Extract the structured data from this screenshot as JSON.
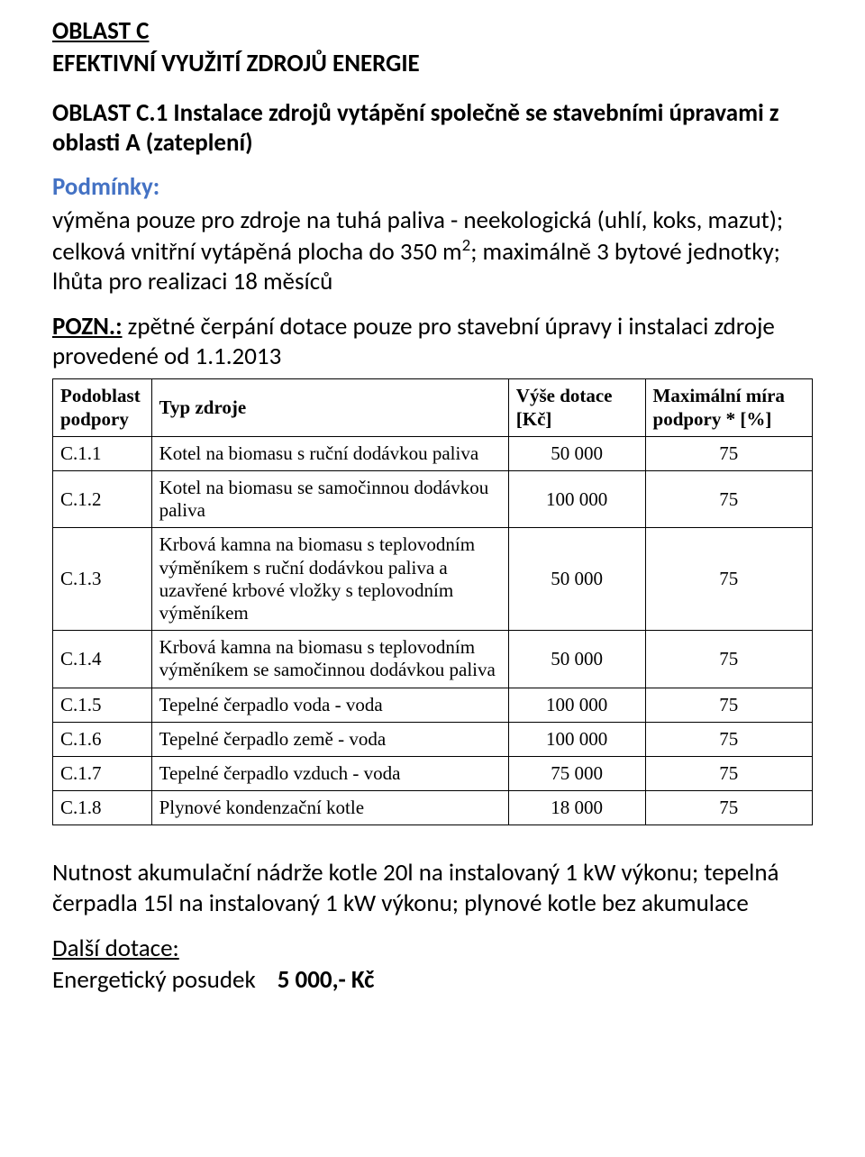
{
  "header": {
    "oblast_line": "OBLAST  C",
    "subtitle": "EFEKTIVNÍ VYUŽITÍ ZDROJŮ ENERGIE"
  },
  "section": {
    "title": "OBLAST C.1 Instalace zdrojů vytápění společně se stavebními úpravami z oblasti A (zateplení)"
  },
  "conditions": {
    "label": "Podmínky:",
    "text_pre": "výměna pouze pro zdroje na tuhá paliva - neekologická (uhlí, koks, mazut); celková vnitřní vytápěná plocha do 350 m",
    "text_post": "; maximálně 3 bytové jednotky; lhůta pro realizaci 18 měsíců",
    "sup": "2"
  },
  "note": {
    "label": "POZN.:",
    "text": " zpětné čerpání dotace pouze pro stavební úpravy i instalaci zdroje provedené od 1.1.2013"
  },
  "table": {
    "headers": {
      "col1_a": "Podoblast",
      "col1_b": "podpory",
      "col2": "Typ zdroje",
      "col3_a": "Výše dotace",
      "col3_b": "[Kč]",
      "col4_a": "Maximální míra",
      "col4_b": "podpory * [%]"
    },
    "rows": [
      {
        "code": "C.1.1",
        "type": "Kotel na biomasu s ruční dodávkou paliva",
        "amount": "50 000",
        "rate": "75"
      },
      {
        "code": "C.1.2",
        "type": "Kotel na biomasu se samočinnou dodávkou paliva",
        "amount": "100 000",
        "rate": "75"
      },
      {
        "code": "C.1.3",
        "type": "Krbová kamna na biomasu s teplovodním výměníkem s ruční dodávkou paliva a uzavřené krbové vložky s teplovodním výměníkem",
        "amount": "50 000",
        "rate": "75"
      },
      {
        "code": "C.1.4",
        "type": "Krbová kamna na biomasu s teplovodním výměníkem se samočinnou dodávkou paliva",
        "amount": "50 000",
        "rate": "75"
      },
      {
        "code": "C.1.5",
        "type": "Tepelné čerpadlo voda - voda",
        "amount": "100 000",
        "rate": "75"
      },
      {
        "code": "C.1.6",
        "type": "Tepelné čerpadlo země - voda",
        "amount": "100 000",
        "rate": "75"
      },
      {
        "code": "C.1.7",
        "type": "Tepelné čerpadlo vzduch - voda",
        "amount": "75 000",
        "rate": "75"
      },
      {
        "code": "C.1.8",
        "type": "Plynové kondenzační kotle",
        "amount": "18 000",
        "rate": "75"
      }
    ]
  },
  "footer": {
    "akum_text": "Nutnost akumulační nádrže kotle 20l na instalovaný 1 kW výkonu; tepelná čerpadla 15l na instalovaný 1 kW výkonu; plynové kotle bez akumulace",
    "further_label": "Další dotace:",
    "energy_label": "Energetický posudek",
    "energy_amount": "5 000,- Kč"
  }
}
